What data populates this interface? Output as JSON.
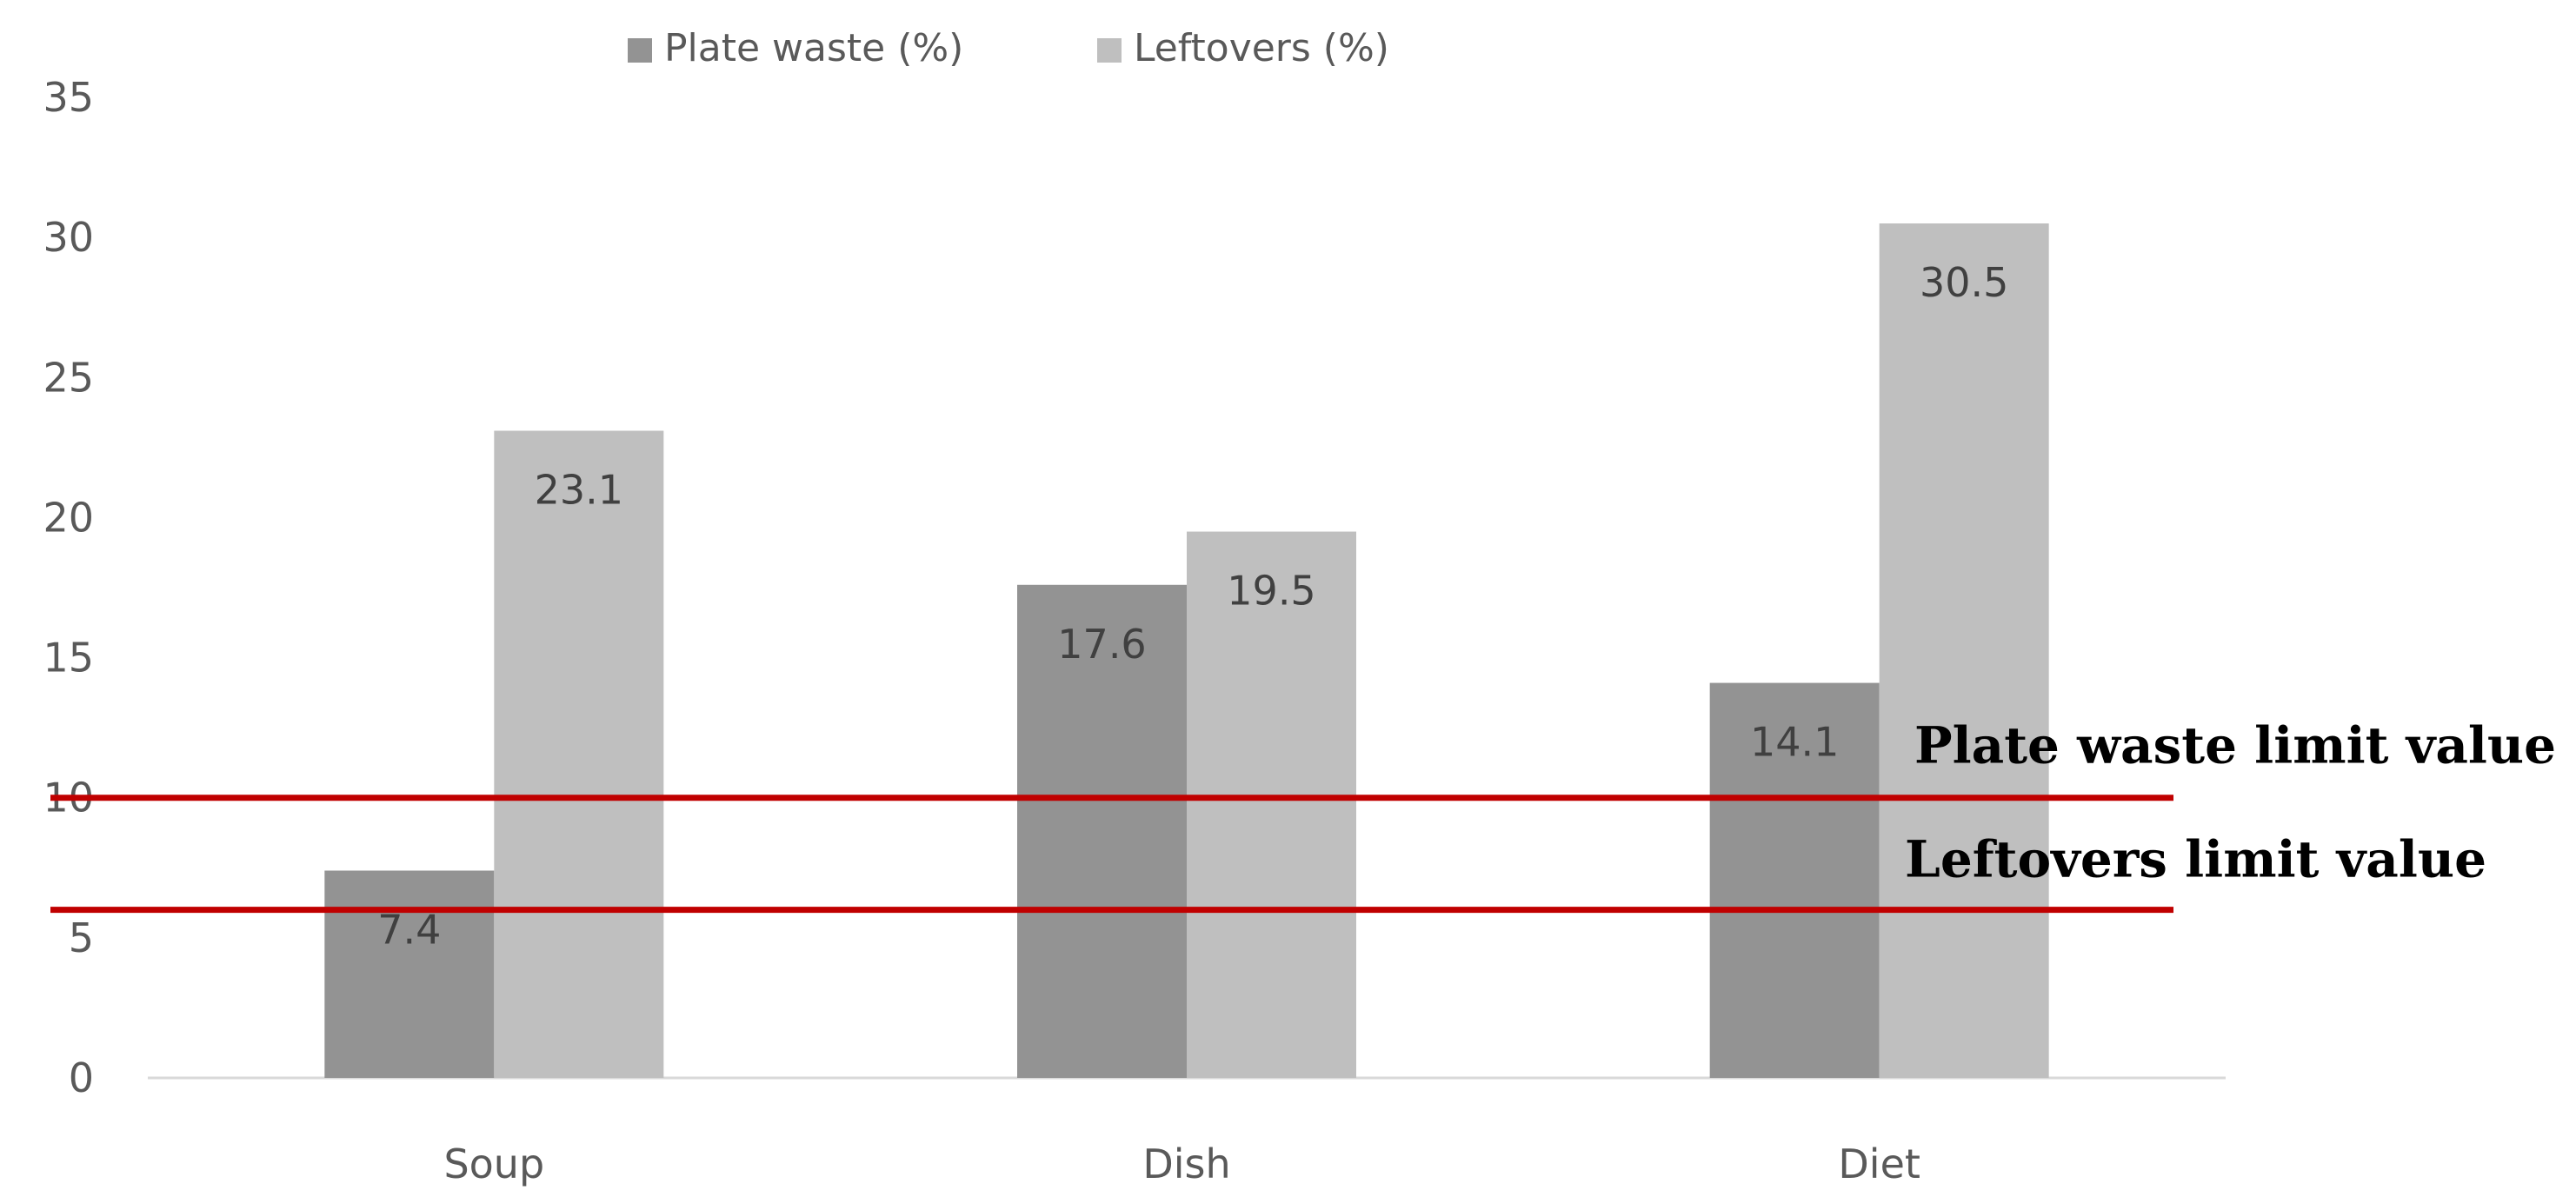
{
  "chart_data": {
    "type": "bar",
    "categories": [
      "Soup",
      "Dish",
      "Diet"
    ],
    "series": [
      {
        "name": "Plate waste (%)",
        "values": [
          7.4,
          17.6,
          14.1
        ],
        "color": "#939393"
      },
      {
        "name": "Leftovers (%)",
        "values": [
          23.1,
          19.5,
          30.5
        ],
        "color": "#bfbfbf"
      }
    ],
    "data_labels": [
      [
        "7.4",
        "17.6",
        "14.1"
      ],
      [
        "23.1",
        "19.5",
        "30.5"
      ]
    ],
    "ylim": [
      0,
      35
    ],
    "yticks": [
      0,
      5,
      10,
      15,
      20,
      25,
      30,
      35
    ],
    "grid": false,
    "legend": "top-center",
    "reference_lines": [
      {
        "label": "Plate waste limit value",
        "value": 10,
        "color": "#c00000"
      },
      {
        "label": "Leftovers limit value",
        "value": 6,
        "color": "#c00000"
      }
    ],
    "title": "",
    "xlabel": "",
    "ylabel": ""
  }
}
